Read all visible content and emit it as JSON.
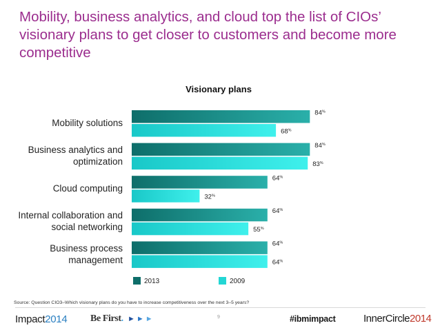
{
  "headline": {
    "line1": "Mobility, business analytics, and cloud top the list of CIOs’",
    "line2": "visionary plans to get closer to customers and become more",
    "line3": "competitive"
  },
  "chart_data": {
    "type": "bar",
    "orientation": "horizontal",
    "title": "Visionary plans",
    "categories": [
      [
        "Mobility solutions"
      ],
      [
        "Business analytics and",
        "optimization"
      ],
      [
        "Cloud computing"
      ],
      [
        "Internal collaboration and",
        "social networking"
      ],
      [
        "Business process",
        "management"
      ]
    ],
    "series": [
      {
        "name": "2013",
        "values": [
          84,
          84,
          64,
          64,
          64
        ],
        "color_start": "#0e6e6a",
        "color_end": "#2ab0aa"
      },
      {
        "name": "2009",
        "values": [
          68,
          83,
          32,
          55,
          64
        ],
        "color_start": "#19c8c8",
        "color_end": "#3ff0ec"
      }
    ],
    "value_suffix": "%",
    "xlim": [
      0,
      100
    ],
    "legend": "bottom",
    "grid": false
  },
  "source": "Source: Question CIO3–Which visionary plans do you have to increase competitiveness over the next 3–5 years?",
  "footer": {
    "impact_word": "Impact",
    "impact_year": "2014",
    "be_first_word": "Be First",
    "be_first_dot": ".",
    "arrow1": "►",
    "arrow2": "►",
    "arrow3": "►",
    "page_number": "9",
    "hashtag": "#ibmimpact",
    "innercircle_word": "InnerCircle",
    "innercircle_year": "2014"
  }
}
